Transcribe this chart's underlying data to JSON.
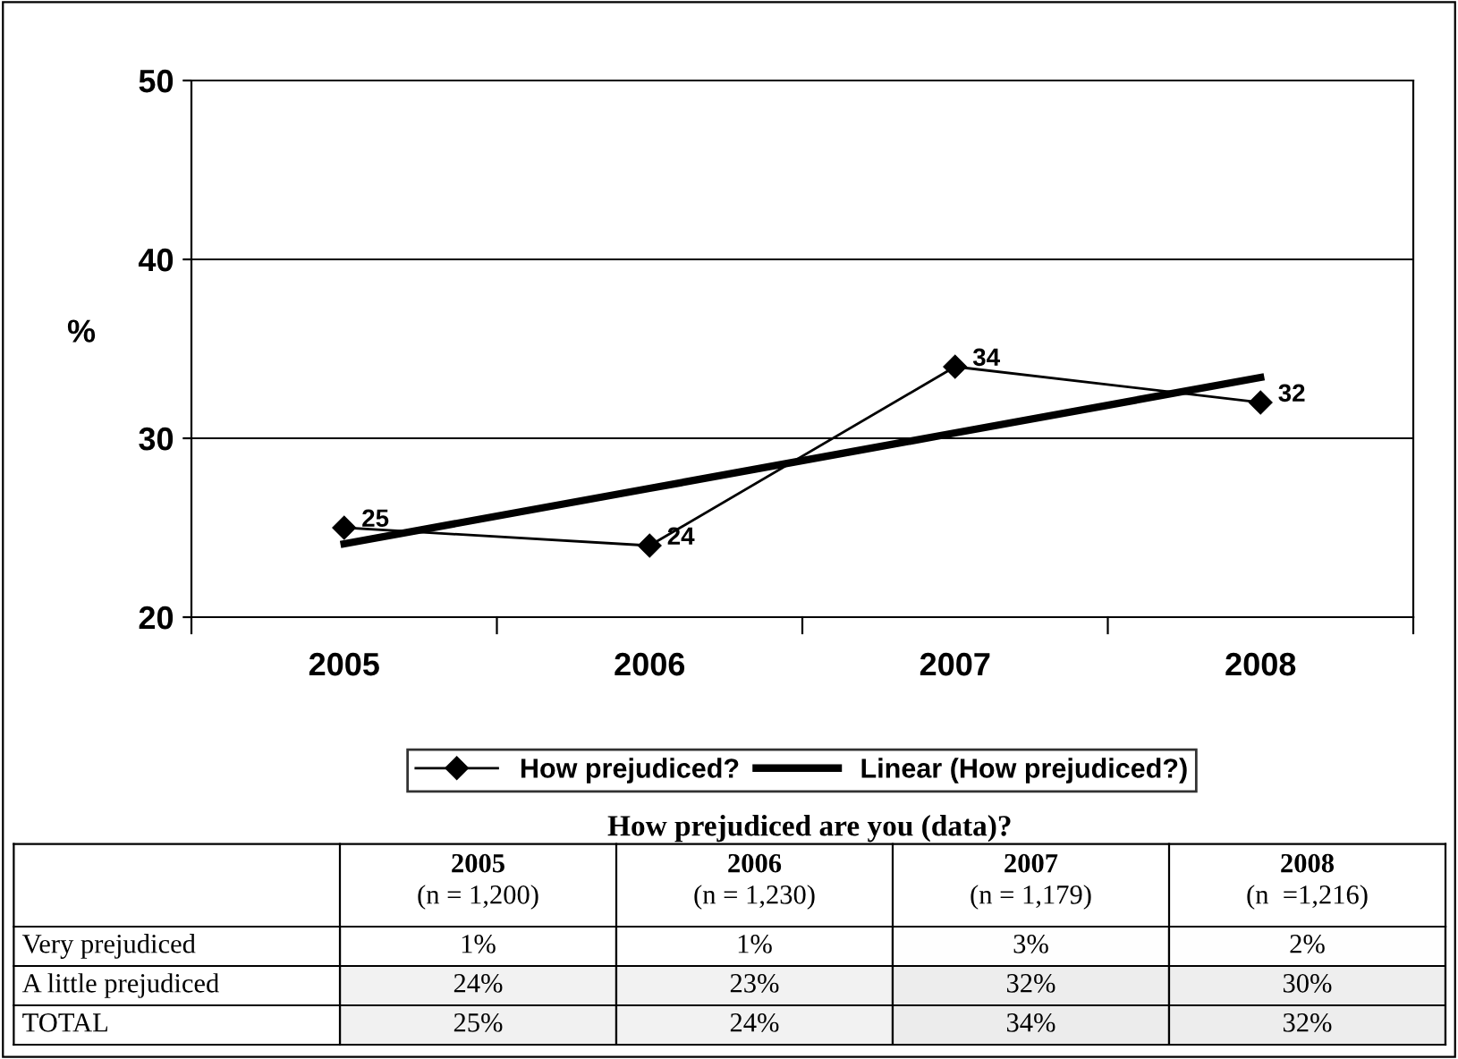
{
  "chart_data": [
    {
      "type": "line",
      "categories": [
        "2005",
        "2006",
        "2007",
        "2008"
      ],
      "ylabel": "%",
      "ylim": [
        20,
        50
      ],
      "yticks": [
        20,
        30,
        40,
        50
      ],
      "grid": "y",
      "legend": "bottom",
      "series": [
        {
          "name": "How prejudiced?",
          "color": "#000000",
          "values": [
            25,
            24,
            34,
            32
          ],
          "marker": "diamond",
          "value_labels": [
            "25",
            "24",
            "34",
            "32"
          ]
        },
        {
          "name": "Linear (How prejudiced?)",
          "type": "line",
          "color": "#000000",
          "values": [
            24.1,
            27.2,
            30.3,
            33.4
          ],
          "marker": "none"
        }
      ]
    },
    {
      "type": "heatmap",
      "cells": [
        [
          1,
          1,
          3,
          2
        ],
        [
          24,
          23,
          32,
          30
        ],
        [
          25,
          24,
          34,
          32
        ]
      ],
      "title": "How prejudiced are you (data)?",
      "categories": [
        "2005\n(n = 1,200)",
        "2006\n(n = 1,230)",
        "2007\n(n = 1,179)",
        "2008\n(n  =1,216)"
      ],
      "y_categories": [
        "Very prejudiced",
        "A little prejudiced",
        "TOTAL"
      ],
      "cell_labels": [
        [
          "1%",
          "1%",
          "3%",
          "2%"
        ],
        [
          "24%",
          "23%",
          "32%",
          "30%"
        ],
        [
          "25%",
          "24%",
          "34%",
          "32%"
        ]
      ]
    }
  ]
}
